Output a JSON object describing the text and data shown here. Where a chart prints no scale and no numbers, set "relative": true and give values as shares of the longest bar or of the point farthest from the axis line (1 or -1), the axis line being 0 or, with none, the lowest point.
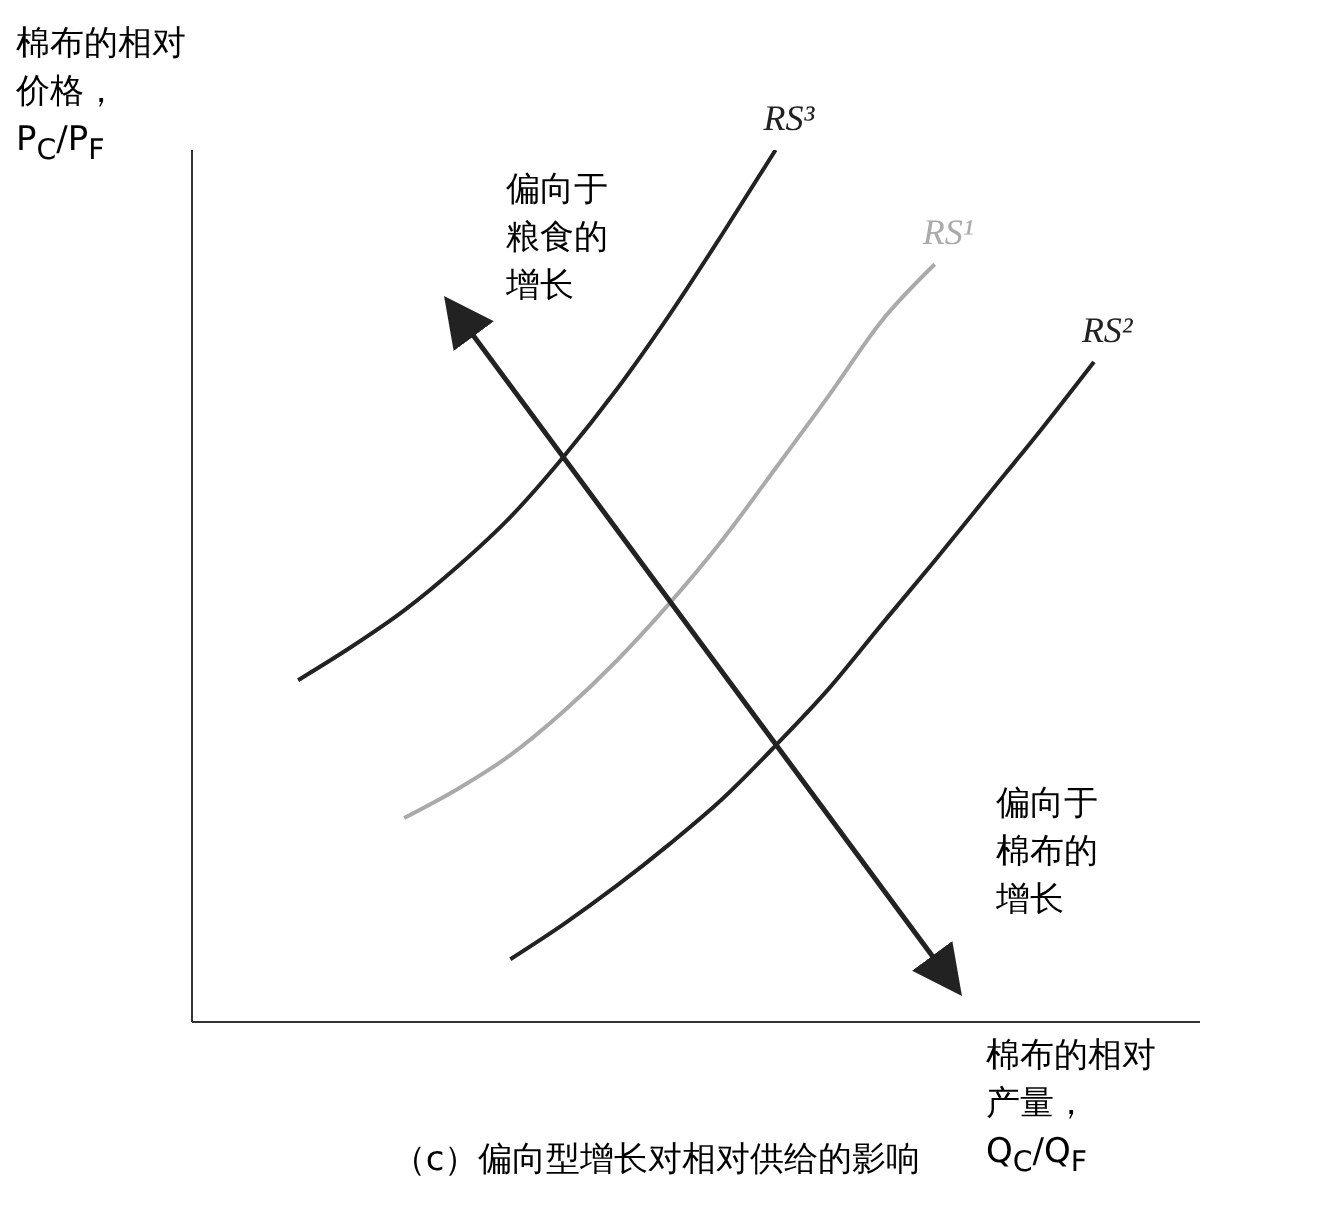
{
  "chart_data": {
    "type": "line",
    "title": "（c）偏向型增长对相对供给的影响",
    "xlabel": "棉布的相对产量，Q$_{C}$/Q$_{F}$",
    "ylabel": "棉布的相对价格，P$_{C}$/P$_{F}$",
    "relative": true,
    "grid": false,
    "legend": false,
    "marker": "none",
    "line_style": "solid",
    "annotations": [
      "偏向于粮食的增长",
      "偏向于棉布的增长"
    ],
    "categories": [
      null,
      null,
      null,
      null,
      null,
      null,
      null,
      null,
      null,
      null,
      null,
      null,
      null,
      null,
      null,
      null,
      null,
      null,
      null,
      null
    ],
    "series": [
      {
        "name": "RS³",
        "color": "#222222",
        "values": [
          null,
          null,
          0.392,
          0.43,
          0.472,
          0.522,
          0.579,
          0.648,
          0.725,
          0.811,
          0.904,
          1.0,
          null,
          null,
          null,
          null,
          null,
          null,
          null,
          null
        ]
      },
      {
        "name": "RS¹",
        "color": "#aaaaaa",
        "values": [
          null,
          null,
          null,
          null,
          0.234,
          0.267,
          0.306,
          0.356,
          0.414,
          0.48,
          0.553,
          0.635,
          0.718,
          0.804,
          0.869,
          null,
          null,
          null,
          null,
          null
        ]
      },
      {
        "name": "RS²",
        "color": "#222222",
        "values": [
          null,
          null,
          null,
          null,
          null,
          null,
          0.072,
          0.112,
          0.156,
          0.204,
          0.256,
          0.317,
          0.382,
          0.456,
          0.529,
          0.604,
          0.679,
          0.757,
          null,
          null
        ]
      }
    ]
  }
}
